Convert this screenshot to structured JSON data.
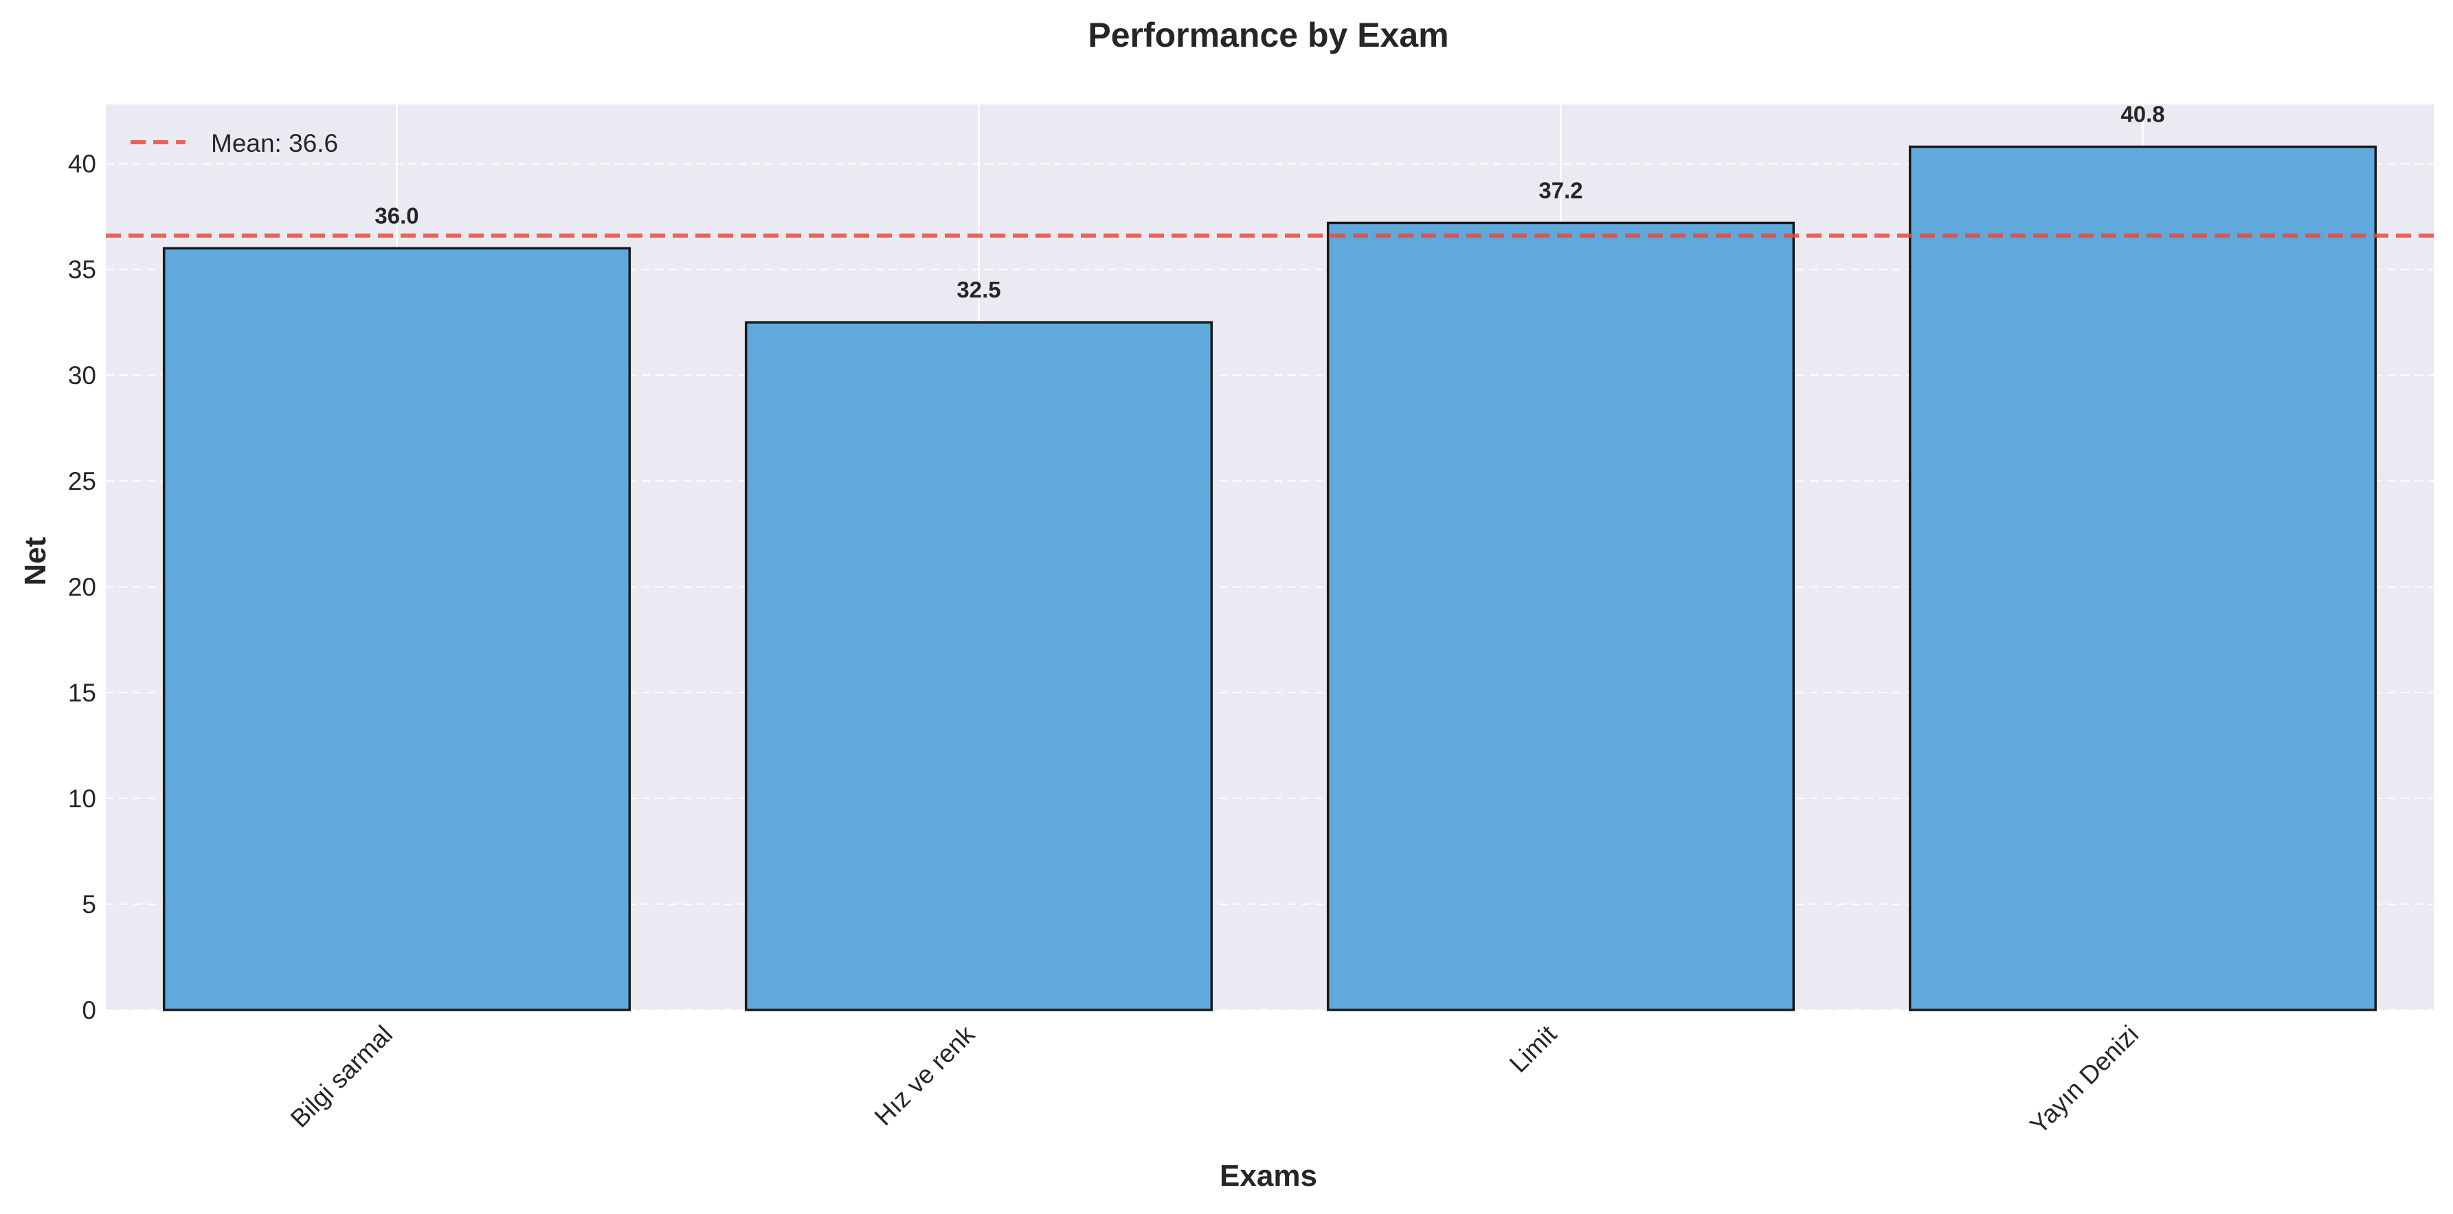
{
  "chart_data": {
    "type": "bar",
    "title": "Performance by Exam",
    "xlabel": "Exams",
    "ylabel": "Net",
    "categories": [
      "Bilgi sarmal",
      "Hız ve renk",
      "Limit",
      "Yayın Denizi"
    ],
    "values": [
      36.0,
      32.5,
      37.2,
      40.8
    ],
    "value_labels": [
      "36.0",
      "32.5",
      "37.2",
      "40.8"
    ],
    "ylim": [
      0,
      42.8
    ],
    "yticks": [
      0,
      5,
      10,
      15,
      20,
      25,
      30,
      35,
      40
    ],
    "mean": 36.6,
    "legend": {
      "entries": [
        {
          "label": "Mean: 36.6",
          "style": "dashed-line"
        }
      ],
      "placement": "top-left"
    },
    "grid": true,
    "colors": {
      "bar_fill": "#5aa6dc",
      "bar_edge": "#1a1a1a",
      "mean_line": "#e74c3c",
      "plot_background": "#eaeaf2",
      "grid": "#ffffff"
    },
    "xtick_rotation": "45deg"
  }
}
